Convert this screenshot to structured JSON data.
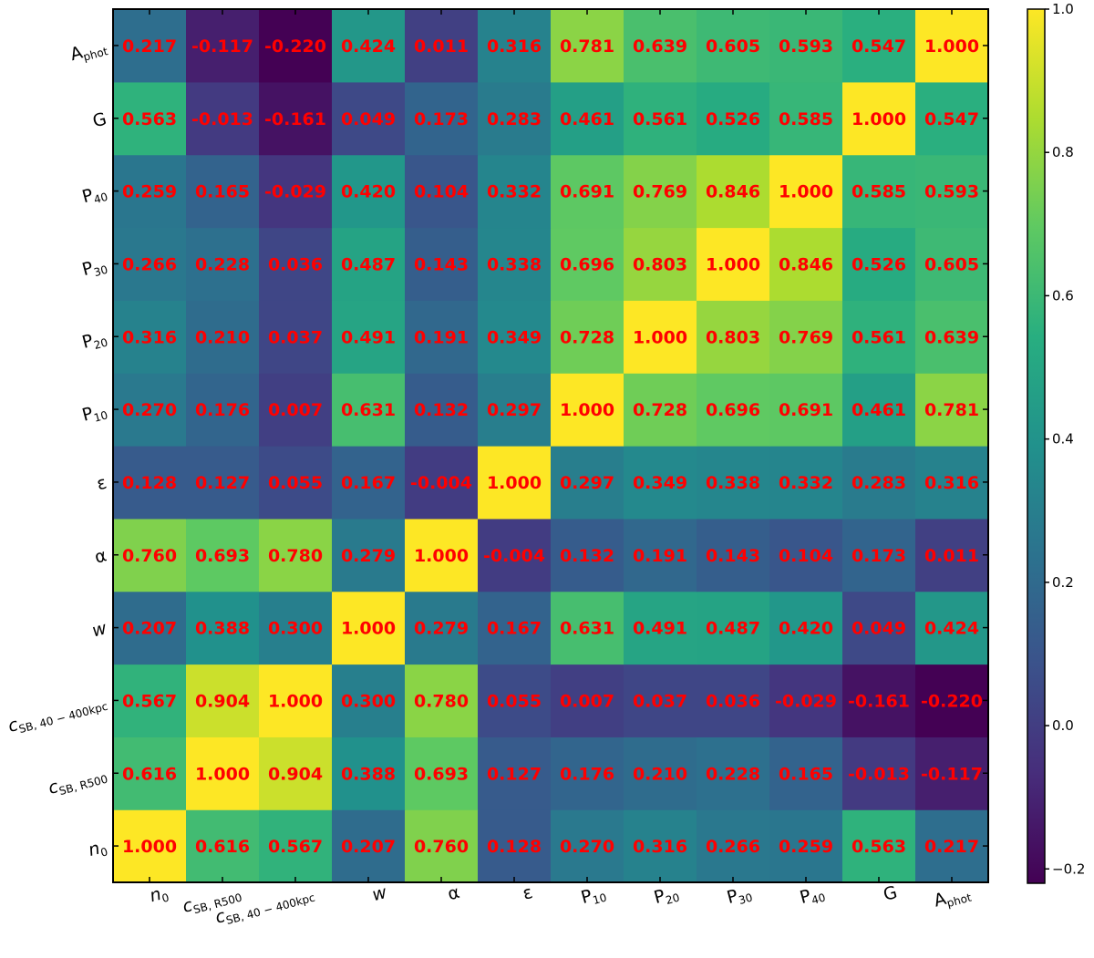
{
  "chart_data": {
    "type": "heatmap",
    "title": "",
    "xlabel": "",
    "ylabel": "",
    "labels": [
      {
        "base": "n",
        "sub": "0",
        "sup": ""
      },
      {
        "base": "c",
        "sub": "SB, R500",
        "sup": ""
      },
      {
        "base": "c",
        "sub": "SB, 40 − 400kpc",
        "sup": ""
      },
      {
        "base": "w",
        "sub": "",
        "sup": ""
      },
      {
        "base": "α",
        "sub": "",
        "sup": ""
      },
      {
        "base": "ε",
        "sub": "",
        "sup": ""
      },
      {
        "base": "P",
        "sub": "10",
        "sup": ""
      },
      {
        "base": "P",
        "sub": "20",
        "sup": ""
      },
      {
        "base": "P",
        "sub": "30",
        "sup": ""
      },
      {
        "base": "P",
        "sub": "40",
        "sup": ""
      },
      {
        "base": "G",
        "sub": "",
        "sup": ""
      },
      {
        "base": "A",
        "sub": "phot",
        "sup": ""
      }
    ],
    "matrix": [
      [
        1.0,
        0.616,
        0.567,
        0.207,
        0.76,
        0.128,
        0.27,
        0.316,
        0.266,
        0.259,
        0.563,
        0.217
      ],
      [
        0.616,
        1.0,
        0.904,
        0.388,
        0.693,
        0.127,
        0.176,
        0.21,
        0.228,
        0.165,
        -0.013,
        -0.117
      ],
      [
        0.567,
        0.904,
        1.0,
        0.3,
        0.78,
        0.055,
        0.007,
        0.037,
        0.036,
        -0.029,
        -0.161,
        -0.22
      ],
      [
        0.207,
        0.388,
        0.3,
        1.0,
        0.279,
        0.167,
        0.631,
        0.491,
        0.487,
        0.42,
        0.049,
        0.424
      ],
      [
        0.76,
        0.693,
        0.78,
        0.279,
        1.0,
        -0.004,
        0.132,
        0.191,
        0.143,
        0.104,
        0.173,
        0.011
      ],
      [
        0.128,
        0.127,
        0.055,
        0.167,
        -0.004,
        1.0,
        0.297,
        0.349,
        0.338,
        0.332,
        0.283,
        0.316
      ],
      [
        0.27,
        0.176,
        0.007,
        0.631,
        0.132,
        0.297,
        1.0,
        0.728,
        0.696,
        0.691,
        0.461,
        0.781
      ],
      [
        0.316,
        0.21,
        0.037,
        0.491,
        0.191,
        0.349,
        0.728,
        1.0,
        0.803,
        0.769,
        0.561,
        0.639
      ],
      [
        0.266,
        0.228,
        0.036,
        0.487,
        0.143,
        0.338,
        0.696,
        0.803,
        1.0,
        0.846,
        0.526,
        0.605
      ],
      [
        0.259,
        0.165,
        -0.029,
        0.42,
        0.104,
        0.332,
        0.691,
        0.769,
        0.846,
        1.0,
        0.585,
        0.593
      ],
      [
        0.563,
        -0.013,
        -0.161,
        0.049,
        0.173,
        0.283,
        0.461,
        0.561,
        0.526,
        0.585,
        1.0,
        0.547
      ],
      [
        0.217,
        -0.117,
        -0.22,
        0.424,
        0.011,
        0.316,
        0.781,
        0.639,
        0.605,
        0.593,
        0.547,
        1.0
      ]
    ],
    "vmin": -0.22,
    "vmax": 1.0,
    "colormap": "viridis",
    "colorbar_ticks": [
      -0.2,
      0.0,
      0.2,
      0.4,
      0.6,
      0.8,
      1.0
    ],
    "colorbar_tick_labels": [
      "−0.2",
      "0.0",
      "0.2",
      "0.4",
      "0.6",
      "0.8",
      "1.0"
    ],
    "annotation_color": "#ff0000",
    "row_order": "bottom-to-top"
  }
}
